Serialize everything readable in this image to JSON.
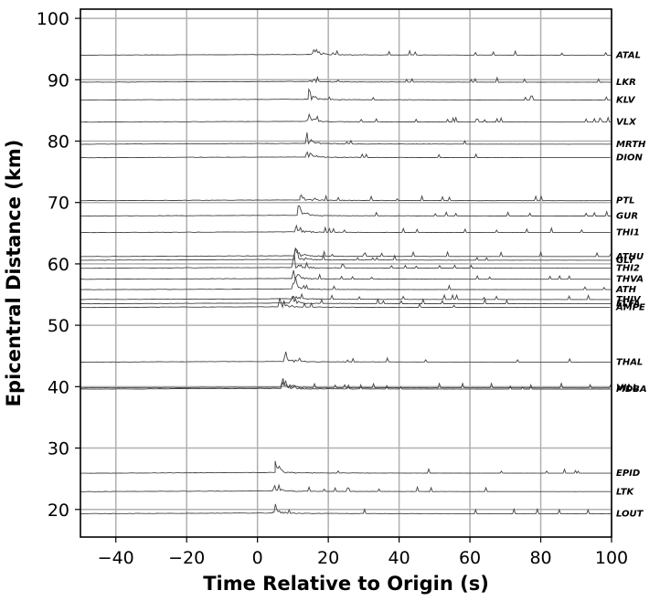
{
  "chart_data": {
    "type": "line",
    "title": "",
    "xlabel": "Time Relative to Origin (s)",
    "ylabel": "Epicentral Distance (km)",
    "xlim": [
      -50,
      100
    ],
    "ylim": [
      15.5,
      101.5
    ],
    "xticks": [
      -40,
      -20,
      0,
      20,
      40,
      60,
      80,
      100
    ],
    "yticks": [
      20,
      30,
      40,
      50,
      60,
      70,
      80,
      90,
      100
    ],
    "grid": true,
    "line_color": "#444444",
    "grid_color": "#b0b0b0",
    "stations": [
      {
        "name": "ATAL",
        "distance": 94.0,
        "onset": 15.5
      },
      {
        "name": "LKR",
        "distance": 89.6,
        "onset": 15.0
      },
      {
        "name": "KLV",
        "distance": 86.7,
        "onset": 14.5
      },
      {
        "name": "VLX",
        "distance": 83.1,
        "onset": 14.2
      },
      {
        "name": "MRTH",
        "distance": 79.5,
        "onset": 14.0
      },
      {
        "name": "DION",
        "distance": 77.3,
        "onset": 13.7
      },
      {
        "name": "PTL",
        "distance": 70.3,
        "onset": 12.0
      },
      {
        "name": "GUR",
        "distance": 67.8,
        "onset": 11.5
      },
      {
        "name": "THI1",
        "distance": 65.1,
        "onset": 11.0
      },
      {
        "name": "ATHU",
        "distance": 61.2,
        "onset": 10.7
      },
      {
        "name": "GLY",
        "distance": 60.6,
        "onset": 10.5
      },
      {
        "name": "THI2",
        "distance": 59.3,
        "onset": 10.4
      },
      {
        "name": "THVA",
        "distance": 57.5,
        "onset": 10.2
      },
      {
        "name": "ATH",
        "distance": 55.8,
        "onset": 10.0
      },
      {
        "name": "THIV",
        "distance": 54.2,
        "onset": 9.8
      },
      {
        "name": "ELFA",
        "distance": 53.5,
        "onset": 9.6
      },
      {
        "name": "AMPE",
        "distance": 52.9,
        "onset": 6.3
      },
      {
        "name": "THAL",
        "distance": 44.0,
        "onset": 8.0
      },
      {
        "name": "VILL",
        "distance": 39.8,
        "onset": 7.2
      },
      {
        "name": "MDBA",
        "distance": 39.6,
        "onset": 7.1
      },
      {
        "name": "EPID",
        "distance": 25.9,
        "onset": 5.0
      },
      {
        "name": "LTK",
        "distance": 22.9,
        "onset": 4.9
      },
      {
        "name": "LOUT",
        "distance": 19.3,
        "onset": 4.3
      }
    ]
  }
}
